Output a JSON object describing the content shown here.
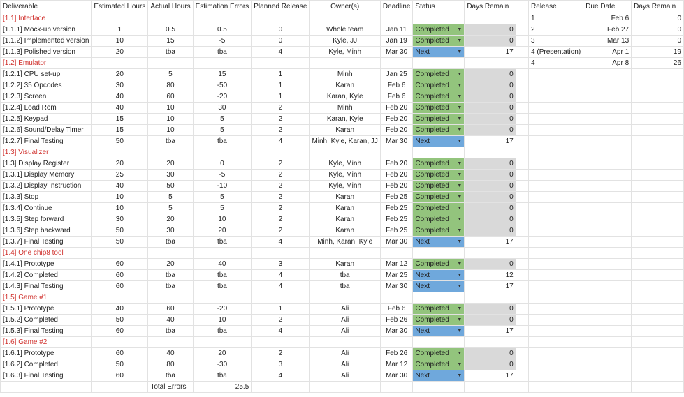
{
  "headers": [
    "Deliverable",
    "Estimated Hours",
    "Actual Hours",
    "Estimation Errors",
    "Planned Release",
    "Owner(s)",
    "Deadline",
    "Status",
    "Days Remain",
    "",
    "Release",
    "Due Date",
    "Days Remain"
  ],
  "releases": [
    {
      "release": "1",
      "due": "Feb 6",
      "days": "0"
    },
    {
      "release": "2",
      "due": "Feb 27",
      "days": "0"
    },
    {
      "release": "3",
      "due": "Mar 13",
      "days": "0"
    },
    {
      "release": "4 (Presentation)",
      "due": "Apr 1",
      "days": "19"
    },
    {
      "release": "4",
      "due": "Apr 8",
      "days": "26"
    }
  ],
  "rows": [
    {
      "type": "section",
      "label": "[1.1] Interface"
    },
    {
      "type": "item",
      "d": "[1.1.1] Mock-up version",
      "est": "1",
      "act": "0.5",
      "err": "0.5",
      "rel": "0",
      "own": "Whole team",
      "dl": "Jan 11",
      "st": "Completed",
      "days": "0"
    },
    {
      "type": "item",
      "d": "[1.1.2] Implemented version",
      "est": "10",
      "act": "15",
      "err": "-5",
      "rel": "0",
      "own": "Kyle, JJ",
      "dl": "Jan 19",
      "st": "Completed",
      "days": "0"
    },
    {
      "type": "item",
      "d": "[1.1.3] Polished version",
      "est": "20",
      "act": "tba",
      "err": "tba",
      "rel": "4",
      "own": "Kyle, Minh",
      "dl": "Mar 30",
      "st": "Next",
      "days": "17"
    },
    {
      "type": "section",
      "label": "[1.2] Emulator"
    },
    {
      "type": "item",
      "d": "[1.2.1] CPU set-up",
      "est": "20",
      "act": "5",
      "err": "15",
      "rel": "1",
      "own": "Minh",
      "dl": "Jan 25",
      "st": "Completed",
      "days": "0"
    },
    {
      "type": "item",
      "d": "[1.2.2] 35 Opcodes",
      "est": "30",
      "act": "80",
      "err": "-50",
      "rel": "1",
      "own": "Karan",
      "dl": "Feb 6",
      "st": "Completed",
      "days": "0"
    },
    {
      "type": "item",
      "d": "[1.2.3] Screen",
      "est": "40",
      "act": "60",
      "err": "-20",
      "rel": "1",
      "own": "Karan, Kyle",
      "dl": "Feb 6",
      "st": "Completed",
      "days": "0"
    },
    {
      "type": "item",
      "d": "[1.2.4] Load Rom",
      "est": "40",
      "act": "10",
      "err": "30",
      "rel": "2",
      "own": "Minh",
      "dl": "Feb 20",
      "st": "Completed",
      "days": "0"
    },
    {
      "type": "item",
      "d": "[1.2.5] Keypad",
      "est": "15",
      "act": "10",
      "err": "5",
      "rel": "2",
      "own": "Karan, Kyle",
      "dl": "Feb 20",
      "st": "Completed",
      "days": "0"
    },
    {
      "type": "item",
      "d": "[1.2.6] Sound/Delay Timer",
      "est": "15",
      "act": "10",
      "err": "5",
      "rel": "2",
      "own": "Karan",
      "dl": "Feb 20",
      "st": "Completed",
      "days": "0"
    },
    {
      "type": "item",
      "d": "[1.2.7] Final Testing",
      "est": "50",
      "act": "tba",
      "err": "tba",
      "rel": "4",
      "own": "Minh, Kyle, Karan, JJ",
      "dl": "Mar 30",
      "st": "Next",
      "days": "17"
    },
    {
      "type": "section",
      "label": "[1.3] Visualizer"
    },
    {
      "type": "item",
      "d": "[1.3] Display Register",
      "est": "20",
      "act": "20",
      "err": "0",
      "rel": "2",
      "own": "Kyle, Minh",
      "dl": "Feb 20",
      "st": "Completed",
      "days": "0"
    },
    {
      "type": "item",
      "d": "[1.3.1] Display Memory",
      "est": "25",
      "act": "30",
      "err": "-5",
      "rel": "2",
      "own": "Kyle, Minh",
      "dl": "Feb 20",
      "st": "Completed",
      "days": "0"
    },
    {
      "type": "item",
      "d": "[1.3.2] Display Instruction",
      "est": "40",
      "act": "50",
      "err": "-10",
      "rel": "2",
      "own": "Kyle, Minh",
      "dl": "Feb 20",
      "st": "Completed",
      "days": "0"
    },
    {
      "type": "item",
      "d": "[1.3.3] Stop",
      "est": "10",
      "act": "5",
      "err": "5",
      "rel": "2",
      "own": "Karan",
      "dl": "Feb 25",
      "st": "Completed",
      "days": "0"
    },
    {
      "type": "item",
      "d": "[1.3.4] Continue",
      "est": "10",
      "act": "5",
      "err": "5",
      "rel": "2",
      "own": "Karan",
      "dl": "Feb 25",
      "st": "Completed",
      "days": "0"
    },
    {
      "type": "item",
      "d": "[1.3.5] Step forward",
      "est": "30",
      "act": "20",
      "err": "10",
      "rel": "2",
      "own": "Karan",
      "dl": "Feb 25",
      "st": "Completed",
      "days": "0"
    },
    {
      "type": "item",
      "d": "[1.3.6] Step backward",
      "est": "50",
      "act": "30",
      "err": "20",
      "rel": "2",
      "own": "Karan",
      "dl": "Feb 25",
      "st": "Completed",
      "days": "0"
    },
    {
      "type": "item",
      "d": "[1.3.7] Final Testing",
      "est": "50",
      "act": "tba",
      "err": "tba",
      "rel": "4",
      "own": "Minh, Karan, Kyle",
      "dl": "Mar 30",
      "st": "Next",
      "days": "17"
    },
    {
      "type": "section",
      "label": "[1.4] One chip8 tool"
    },
    {
      "type": "item",
      "d": "[1.4.1] Prototype",
      "est": "60",
      "act": "20",
      "err": "40",
      "rel": "3",
      "own": "Karan",
      "dl": "Mar 12",
      "st": "Completed",
      "days": "0"
    },
    {
      "type": "item",
      "d": "[1.4.2] Completed",
      "est": "60",
      "act": "tba",
      "err": "tba",
      "rel": "4",
      "own": "tba",
      "dl": "Mar 25",
      "st": "Next",
      "days": "12"
    },
    {
      "type": "item",
      "d": "[1.4.3] Final Testing",
      "est": "60",
      "act": "tba",
      "err": "tba",
      "rel": "4",
      "own": "tba",
      "dl": "Mar 30",
      "st": "Next",
      "days": "17"
    },
    {
      "type": "section",
      "label": "[1.5] Game #1"
    },
    {
      "type": "item",
      "d": "[1.5.1] Prototype",
      "est": "40",
      "act": "60",
      "err": "-20",
      "rel": "1",
      "own": "Ali",
      "dl": "Feb 6",
      "st": "Completed",
      "days": "0"
    },
    {
      "type": "item",
      "d": "[1.5.2] Completed",
      "est": "50",
      "act": "40",
      "err": "10",
      "rel": "2",
      "own": "Ali",
      "dl": "Feb 26",
      "st": "Completed",
      "days": "0"
    },
    {
      "type": "item",
      "d": "[1.5.3] Final Testing",
      "est": "60",
      "act": "tba",
      "err": "tba",
      "rel": "4",
      "own": "Ali",
      "dl": "Mar 30",
      "st": "Next",
      "days": "17"
    },
    {
      "type": "section",
      "label": "[1.6] Game #2"
    },
    {
      "type": "item",
      "d": "[1.6.1] Prototype",
      "est": "60",
      "act": "40",
      "err": "20",
      "rel": "2",
      "own": "Ali",
      "dl": "Feb 26",
      "st": "Completed",
      "days": "0"
    },
    {
      "type": "item",
      "d": "[1.6.2] Completed",
      "est": "50",
      "act": "80",
      "err": "-30",
      "rel": "3",
      "own": "Ali",
      "dl": "Mar 12",
      "st": "Completed",
      "days": "0"
    },
    {
      "type": "item",
      "d": "[1.6.3] Final Testing",
      "est": "60",
      "act": "tba",
      "err": "tba",
      "rel": "4",
      "own": "Ali",
      "dl": "Mar 30",
      "st": "Next",
      "days": "17"
    }
  ],
  "total": {
    "label": "Total Errors",
    "value": "25.5"
  },
  "dropdown_icon": "triangle-down-icon"
}
